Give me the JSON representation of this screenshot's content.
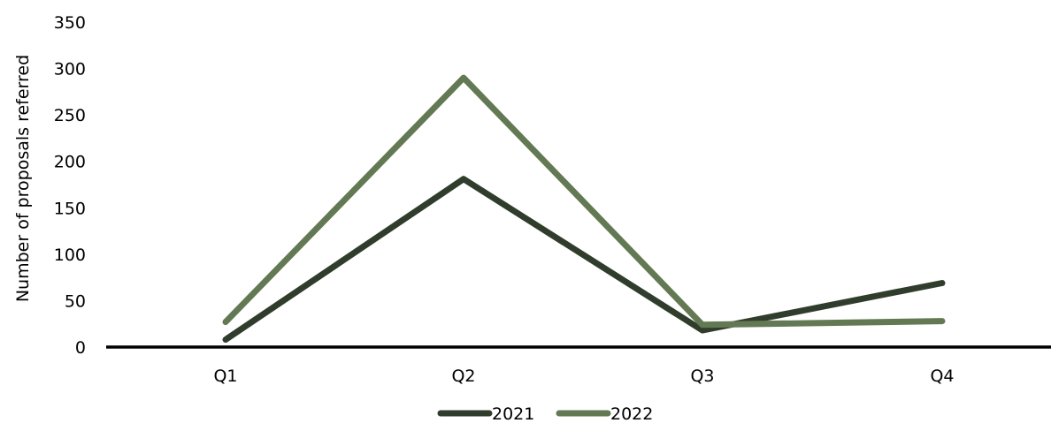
{
  "chart_data": {
    "type": "line",
    "categories": [
      "Q1",
      "Q2",
      "Q3",
      "Q4"
    ],
    "ylabel": "Number of proposals referred",
    "ylim": [
      0,
      350
    ],
    "yticks": [
      0,
      50,
      100,
      150,
      200,
      250,
      300,
      350
    ],
    "grid": false,
    "legend": "bottom-center",
    "series": [
      {
        "name": "2021",
        "color": "#313d2c",
        "values": [
          8,
          181,
          18,
          69
        ]
      },
      {
        "name": "2022",
        "color": "#637953",
        "values": [
          27,
          290,
          24,
          28
        ]
      }
    ]
  }
}
